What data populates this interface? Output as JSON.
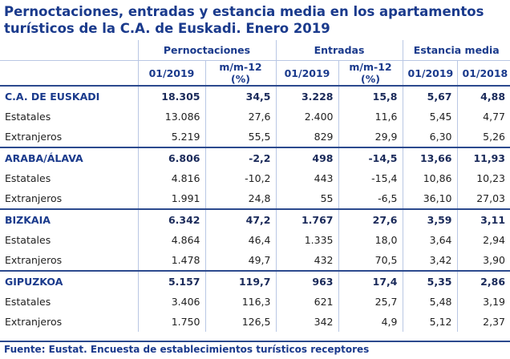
{
  "title": {
    "line1": "Pernoctaciones, entradas y estancia media en los apartamentos",
    "line2": "turísticos de la C.A. de Euskadi. Enero 2019"
  },
  "headers": {
    "group1": "Pernoctaciones",
    "group2": "Entradas",
    "group3": "Estancia media",
    "col_period_2019": "01/2019",
    "col_period_2018": "01/2018",
    "col_mm_line1": "m/m-12",
    "col_mm_line2": "(%)"
  },
  "rows": [
    {
      "label": "C.A. DE EUSKADI",
      "pern": "18.305",
      "pern_mm": "34,5",
      "ent": "3.228",
      "ent_mm": "15,8",
      "em2019": "5,67",
      "em2018": "4,88"
    },
    {
      "label": "Estatales",
      "pern": "13.086",
      "pern_mm": "27,6",
      "ent": "2.400",
      "ent_mm": "11,6",
      "em2019": "5,45",
      "em2018": "4,77"
    },
    {
      "label": "Extranjeros",
      "pern": "5.219",
      "pern_mm": "55,5",
      "ent": "829",
      "ent_mm": "29,9",
      "em2019": "6,30",
      "em2018": "5,26"
    },
    {
      "label": "ARABA/ÁLAVA",
      "pern": "6.806",
      "pern_mm": "-2,2",
      "ent": "498",
      "ent_mm": "-14,5",
      "em2019": "13,66",
      "em2018": "11,93"
    },
    {
      "label": "Estatales",
      "pern": "4.816",
      "pern_mm": "-10,2",
      "ent": "443",
      "ent_mm": "-15,4",
      "em2019": "10,86",
      "em2018": "10,23"
    },
    {
      "label": "Extranjeros",
      "pern": "1.991",
      "pern_mm": "24,8",
      "ent": "55",
      "ent_mm": "-6,5",
      "em2019": "36,10",
      "em2018": "27,03"
    },
    {
      "label": "BIZKAIA",
      "pern": "6.342",
      "pern_mm": "47,2",
      "ent": "1.767",
      "ent_mm": "27,6",
      "em2019": "3,59",
      "em2018": "3,11"
    },
    {
      "label": "Estatales",
      "pern": "4.864",
      "pern_mm": "46,4",
      "ent": "1.335",
      "ent_mm": "18,0",
      "em2019": "3,64",
      "em2018": "2,94"
    },
    {
      "label": "Extranjeros",
      "pern": "1.478",
      "pern_mm": "49,7",
      "ent": "432",
      "ent_mm": "70,5",
      "em2019": "3,42",
      "em2018": "3,90"
    },
    {
      "label": "GIPUZKOA",
      "pern": "5.157",
      "pern_mm": "119,7",
      "ent": "963",
      "ent_mm": "17,4",
      "em2019": "5,35",
      "em2018": "2,86"
    },
    {
      "label": "Estatales",
      "pern": "3.406",
      "pern_mm": "116,3",
      "ent": "621",
      "ent_mm": "25,7",
      "em2019": "5,48",
      "em2018": "3,19"
    },
    {
      "label": "Extranjeros",
      "pern": "1.750",
      "pern_mm": "126,5",
      "ent": "342",
      "ent_mm": "4,9",
      "em2019": "5,12",
      "em2018": "2,37"
    }
  ],
  "footer": "Fuente: Eustat. Encuesta de establecimientos turísticos receptores"
}
